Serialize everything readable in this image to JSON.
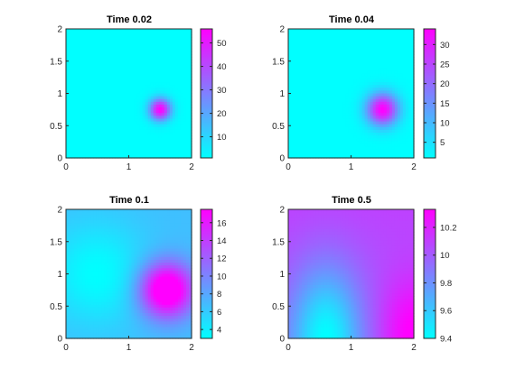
{
  "colors": {
    "low": "#00ffff",
    "high": "#ff00ff",
    "axis": "#262626"
  },
  "chart_data": [
    {
      "type": "heatmap",
      "title": "Time 0.02",
      "xlim": [
        0,
        2
      ],
      "ylim": [
        0,
        2
      ],
      "xticks": [
        "0",
        "1",
        "2"
      ],
      "yticks": [
        "0",
        "0.5",
        "1",
        "1.5",
        "2"
      ],
      "colormap": "cool",
      "colorbar": {
        "range": [
          1,
          56
        ],
        "ticks": [
          "10",
          "20",
          "30",
          "40",
          "50"
        ]
      },
      "field": {
        "hotspot": [
          1.5,
          0.75
        ],
        "width": 0.17,
        "peak": 56,
        "base": 1
      }
    },
    {
      "type": "heatmap",
      "title": "Time 0.04",
      "xlim": [
        0,
        2
      ],
      "ylim": [
        0,
        2
      ],
      "xticks": [
        "0",
        "1",
        "2"
      ],
      "yticks": [
        "0",
        "0.5",
        "1",
        "1.5",
        "2"
      ],
      "colormap": "cool",
      "colorbar": {
        "range": [
          1,
          34
        ],
        "ticks": [
          "5",
          "10",
          "15",
          "20",
          "25",
          "30"
        ]
      },
      "field": {
        "hotspot": [
          1.5,
          0.75
        ],
        "width": 0.25,
        "peak": 34,
        "base": 1
      }
    },
    {
      "type": "heatmap",
      "title": "Time 0.1",
      "xlim": [
        0,
        2
      ],
      "ylim": [
        0,
        2
      ],
      "xticks": [
        "0",
        "1",
        "2"
      ],
      "yticks": [
        "0",
        "0.5",
        "1",
        "1.5",
        "2"
      ],
      "colormap": "cool",
      "colorbar": {
        "range": [
          3,
          17.5
        ],
        "ticks": [
          "4",
          "6",
          "8",
          "10",
          "12",
          "14",
          "16"
        ]
      },
      "field": {
        "hotspot": [
          1.6,
          0.75
        ],
        "width": 0.42,
        "peak": 17.5,
        "base": 3
      }
    },
    {
      "type": "heatmap",
      "title": "Time 0.5",
      "xlim": [
        0,
        2
      ],
      "ylim": [
        0,
        2
      ],
      "xticks": [
        "0",
        "1",
        "2"
      ],
      "yticks": [
        "0",
        "0.5",
        "1",
        "1.5",
        "2"
      ],
      "colormap": "cool",
      "colorbar": {
        "range": [
          9.4,
          10.33
        ],
        "ticks": [
          "9.4",
          "9.6",
          "9.8",
          "10",
          "10.2"
        ]
      },
      "field": {
        "hotspot": [
          2.0,
          0.0
        ],
        "coldspot": [
          0.6,
          0.0
        ],
        "peak": 10.33,
        "base": 9.4
      }
    }
  ]
}
